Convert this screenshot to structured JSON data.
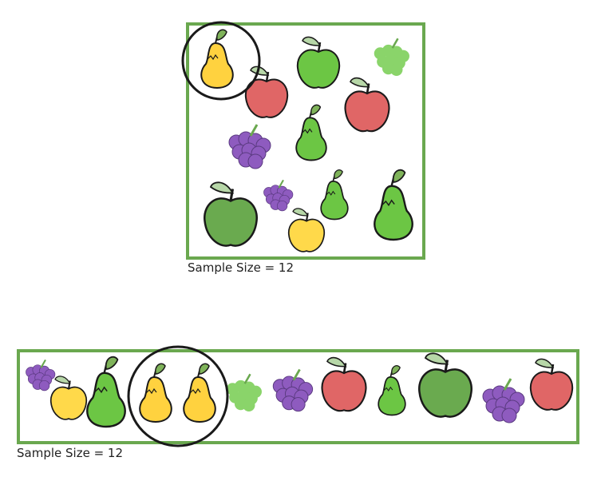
{
  "panels": [
    {
      "caption": "Sample Size = 12",
      "fruits": [
        "pear-yellow",
        "apple-red",
        "apple-green",
        "grapes-green",
        "apple-red",
        "pear-green",
        "grapes-purple",
        "apple-green",
        "grapes-purple",
        "pear-green",
        "apple-yellow",
        "pear-green"
      ],
      "highlighted": [
        0
      ]
    },
    {
      "caption": "Sample Size = 12",
      "fruits": [
        "grapes-purple",
        "apple-yellow",
        "pear-green",
        "pear-yellow",
        "pear-yellow",
        "grapes-green",
        "grapes-purple",
        "apple-red",
        "pear-green",
        "apple-green",
        "grapes-purple",
        "apple-red"
      ],
      "highlighted": [
        3,
        4
      ]
    }
  ],
  "colors": {
    "frame": "#6aa84f",
    "apple-red": "#e06666",
    "apple-green": "#6cc644",
    "apple-dark-green": "#6aaa4f",
    "apple-yellow": "#ffd94a",
    "pear-yellow": "#ffd23f",
    "pear-green": "#6cc644",
    "grapes-purple": "#8e5bbf",
    "grapes-green": "#8ad46a",
    "leaf": "#b7d7a8",
    "outline": "#1a1a1a"
  }
}
